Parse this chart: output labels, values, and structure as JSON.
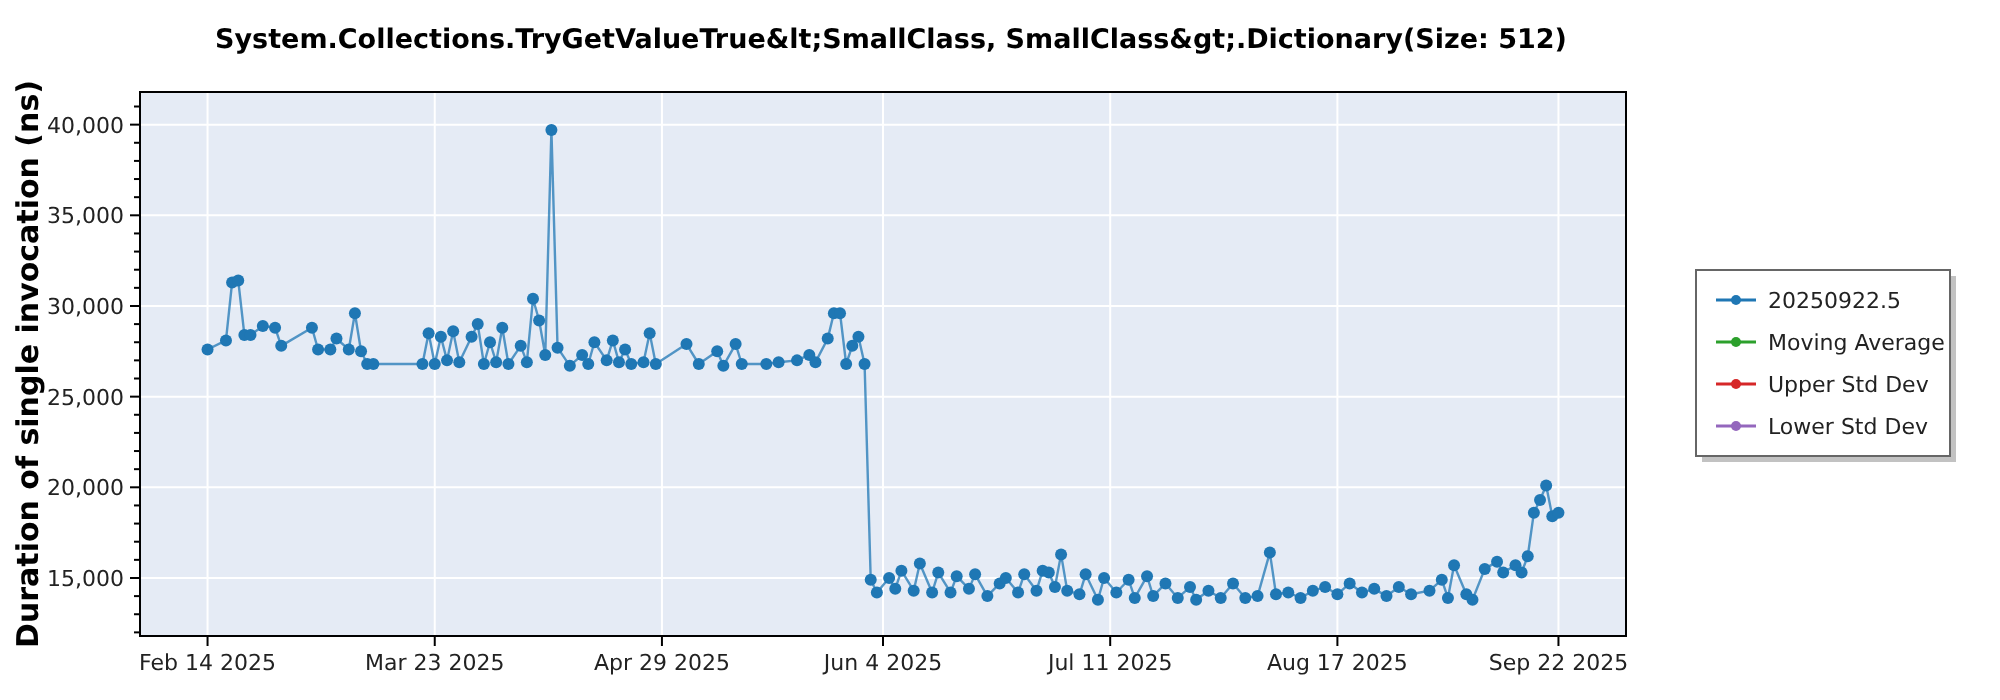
{
  "chart_data": {
    "type": "line",
    "title": "System.Collections.TryGetValueTrue&lt;SmallClass, SmallClass&gt;.Dictionary(Size: 512)",
    "ylabel": "Duration of single invocation (ns)",
    "xlim": [
      "2025-02-03",
      "2025-10-03"
    ],
    "xticks": [
      {
        "value": "2025-02-14",
        "label": "Feb 14 2025"
      },
      {
        "value": "2025-03-23",
        "label": "Mar 23 2025"
      },
      {
        "value": "2025-04-29",
        "label": "Apr 29 2025"
      },
      {
        "value": "2025-06-04",
        "label": "Jun 4 2025"
      },
      {
        "value": "2025-07-11",
        "label": "Jul 11 2025"
      },
      {
        "value": "2025-08-17",
        "label": "Aug 17 2025"
      },
      {
        "value": "2025-09-22",
        "label": "Sep 22 2025"
      }
    ],
    "ylim": [
      11800,
      41800
    ],
    "yticks": [
      {
        "value": 12000,
        "label": null
      },
      {
        "value": 13000,
        "label": null
      },
      {
        "value": 14000,
        "label": null
      },
      {
        "value": 15000,
        "label": "15,000"
      },
      {
        "value": 16000,
        "label": null
      },
      {
        "value": 17000,
        "label": null
      },
      {
        "value": 18000,
        "label": null
      },
      {
        "value": 19000,
        "label": null
      },
      {
        "value": 20000,
        "label": "20,000"
      },
      {
        "value": 21000,
        "label": null
      },
      {
        "value": 22000,
        "label": null
      },
      {
        "value": 23000,
        "label": null
      },
      {
        "value": 24000,
        "label": null
      },
      {
        "value": 25000,
        "label": "25,000"
      },
      {
        "value": 26000,
        "label": null
      },
      {
        "value": 27000,
        "label": null
      },
      {
        "value": 28000,
        "label": null
      },
      {
        "value": 29000,
        "label": null
      },
      {
        "value": 30000,
        "label": "30,000"
      },
      {
        "value": 31000,
        "label": null
      },
      {
        "value": 32000,
        "label": null
      },
      {
        "value": 33000,
        "label": null
      },
      {
        "value": 34000,
        "label": null
      },
      {
        "value": 35000,
        "label": "35,000"
      },
      {
        "value": 36000,
        "label": null
      },
      {
        "value": 37000,
        "label": null
      },
      {
        "value": 38000,
        "label": null
      },
      {
        "value": 39000,
        "label": null
      },
      {
        "value": 40000,
        "label": "40,000"
      },
      {
        "value": 41000,
        "label": null
      }
    ],
    "grid": true,
    "legend": "right",
    "marker": "circle",
    "line_style": "solid",
    "series": [
      {
        "name": "20250922.5",
        "color": "#1f77b4",
        "x": [
          "2025-02-14",
          "2025-02-17",
          "2025-02-18",
          "2025-02-19",
          "2025-02-20",
          "2025-02-21",
          "2025-02-23",
          "2025-02-25",
          "2025-02-26",
          "2025-03-03",
          "2025-03-04",
          "2025-03-06",
          "2025-03-07",
          "2025-03-09",
          "2025-03-10",
          "2025-03-11",
          "2025-03-12",
          "2025-03-13",
          "2025-03-21",
          "2025-03-22",
          "2025-03-23",
          "2025-03-24",
          "2025-03-25",
          "2025-03-26",
          "2025-03-27",
          "2025-03-29",
          "2025-03-30",
          "2025-03-31",
          "2025-04-01",
          "2025-04-02",
          "2025-04-03",
          "2025-04-04",
          "2025-04-06",
          "2025-04-07",
          "2025-04-08",
          "2025-04-09",
          "2025-04-10",
          "2025-04-11",
          "2025-04-12",
          "2025-04-14",
          "2025-04-16",
          "2025-04-17",
          "2025-04-18",
          "2025-04-20",
          "2025-04-21",
          "2025-04-22",
          "2025-04-23",
          "2025-04-24",
          "2025-04-26",
          "2025-04-27",
          "2025-04-28",
          "2025-05-03",
          "2025-05-05",
          "2025-05-08",
          "2025-05-09",
          "2025-05-11",
          "2025-05-12",
          "2025-05-16",
          "2025-05-18",
          "2025-05-21",
          "2025-05-23",
          "2025-05-24",
          "2025-05-26",
          "2025-05-27",
          "2025-05-28",
          "2025-05-29",
          "2025-05-30",
          "2025-05-31",
          "2025-06-01",
          "2025-06-02",
          "2025-06-03",
          "2025-06-05",
          "2025-06-06",
          "2025-06-07",
          "2025-06-09",
          "2025-06-10",
          "2025-06-12",
          "2025-06-13",
          "2025-06-15",
          "2025-06-16",
          "2025-06-18",
          "2025-06-19",
          "2025-06-21",
          "2025-06-23",
          "2025-06-24",
          "2025-06-26",
          "2025-06-27",
          "2025-06-29",
          "2025-06-30",
          "2025-07-01",
          "2025-07-02",
          "2025-07-03",
          "2025-07-04",
          "2025-07-06",
          "2025-07-07",
          "2025-07-09",
          "2025-07-10",
          "2025-07-12",
          "2025-07-14",
          "2025-07-15",
          "2025-07-17",
          "2025-07-18",
          "2025-07-20",
          "2025-07-22",
          "2025-07-24",
          "2025-07-25",
          "2025-07-27",
          "2025-07-29",
          "2025-07-31",
          "2025-08-02",
          "2025-08-04",
          "2025-08-06",
          "2025-08-07",
          "2025-08-09",
          "2025-08-11",
          "2025-08-13",
          "2025-08-15",
          "2025-08-17",
          "2025-08-19",
          "2025-08-21",
          "2025-08-23",
          "2025-08-25",
          "2025-08-27",
          "2025-08-29",
          "2025-09-01",
          "2025-09-03",
          "2025-09-04",
          "2025-09-05",
          "2025-09-07",
          "2025-09-08",
          "2025-09-10",
          "2025-09-12",
          "2025-09-13",
          "2025-09-15",
          "2025-09-16",
          "2025-09-17",
          "2025-09-18",
          "2025-09-19",
          "2025-09-20",
          "2025-09-21",
          "2025-09-22"
        ],
        "values": [
          27600,
          28100,
          31300,
          31400,
          28400,
          28400,
          28900,
          28800,
          27800,
          28800,
          27600,
          27600,
          28200,
          27600,
          29600,
          27500,
          26800,
          26800,
          26800,
          28500,
          26800,
          28300,
          27000,
          28600,
          26900,
          28300,
          29000,
          26800,
          28000,
          26900,
          28800,
          26800,
          27800,
          26900,
          30400,
          29200,
          27300,
          39700,
          27700,
          26700,
          27300,
          26800,
          28000,
          27000,
          28100,
          26900,
          27600,
          26800,
          26900,
          28500,
          26800,
          27900,
          26800,
          27500,
          26700,
          27900,
          26800,
          26800,
          26900,
          27000,
          27300,
          26900,
          28200,
          29600,
          29600,
          26800,
          27800,
          28300,
          26800,
          14900,
          14200,
          15000,
          14400,
          15400,
          14300,
          15800,
          14200,
          15300,
          14200,
          15100,
          14400,
          15200,
          14000,
          14700,
          15000,
          14200,
          15200,
          14300,
          15400,
          15300,
          14500,
          16300,
          14300,
          14100,
          15200,
          13800,
          15000,
          14200,
          14900,
          13900,
          15100,
          14000,
          14700,
          13900,
          14500,
          13800,
          14300,
          13900,
          14700,
          13900,
          14000,
          16400,
          14100,
          14200,
          13900,
          14300,
          14500,
          14100,
          14700,
          14200,
          14400,
          14000,
          14500,
          14100,
          14300,
          14900,
          13900,
          15700,
          14100,
          13800,
          15500,
          15900,
          15300,
          15700,
          15300,
          16200,
          18600,
          19300,
          20100,
          18400,
          18600
        ]
      },
      {
        "name": "Moving Average",
        "color": "#2ca02c"
      },
      {
        "name": "Upper Std Dev",
        "color": "#d62728"
      },
      {
        "name": "Lower Std Dev",
        "color": "#9467bd"
      }
    ]
  }
}
